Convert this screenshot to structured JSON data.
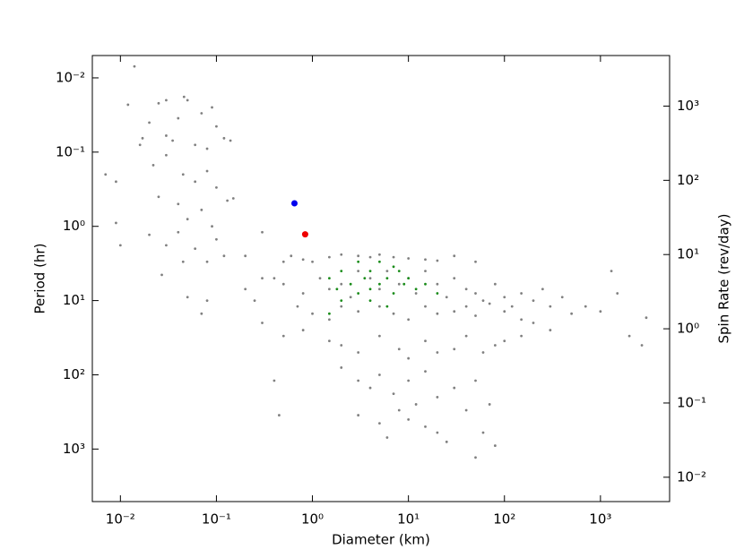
{
  "chart_data": {
    "type": "scatter",
    "x_label": "Diameter (km)",
    "y_label": "Period (hr)",
    "y2_label": "Spin Rate (rev/day)",
    "x_log": true,
    "y_log": true,
    "y2_log": true,
    "y_inverted": true,
    "xlim": [
      0.0051,
      5250
    ],
    "ylim": [
      0.005,
      5100
    ],
    "y2lim": [
      0.0047,
      4800
    ],
    "xticks": [
      {
        "value": 0.01,
        "label": "10⁻²"
      },
      {
        "value": 0.1,
        "label": "10⁻¹"
      },
      {
        "value": 1,
        "label": "10⁰"
      },
      {
        "value": 10,
        "label": "10¹"
      },
      {
        "value": 100,
        "label": "10²"
      },
      {
        "value": 1000,
        "label": "10³"
      }
    ],
    "yticks": [
      {
        "value": 0.01,
        "label": "10⁻²"
      },
      {
        "value": 0.1,
        "label": "10⁻¹"
      },
      {
        "value": 1,
        "label": "10⁰"
      },
      {
        "value": 10,
        "label": "10¹"
      },
      {
        "value": 100,
        "label": "10²"
      },
      {
        "value": 1000,
        "label": "10³"
      }
    ],
    "y2ticks": [
      {
        "value": 0.01,
        "label": "10⁻²"
      },
      {
        "value": 0.1,
        "label": "10⁻¹"
      },
      {
        "value": 1,
        "label": "10⁰"
      },
      {
        "value": 10,
        "label": "10¹"
      },
      {
        "value": 100,
        "label": "10²"
      },
      {
        "value": 1000,
        "label": "10³"
      }
    ],
    "series": [
      {
        "color": "#808080",
        "size": 1.4,
        "x": [
          0.014,
          0.012,
          0.025,
          0.03,
          0.046,
          0.05,
          0.04,
          0.07,
          0.09,
          0.1,
          0.017,
          0.02,
          0.03,
          0.035,
          0.06,
          0.08,
          0.12,
          0.14,
          0.016,
          0.007,
          0.009,
          0.022,
          0.03,
          0.045,
          0.06,
          0.08,
          0.1,
          0.13,
          0.15,
          0.025,
          0.04,
          0.05,
          0.07,
          0.09,
          0.1,
          0.04,
          0.03,
          0.06,
          0.009,
          0.01,
          0.02,
          0.08,
          0.12,
          0.05,
          0.08,
          0.027,
          0.045,
          0.2,
          0.3,
          0.07,
          0.2,
          0.25,
          0.3,
          0.4,
          0.3,
          0.5,
          0.6,
          0.8,
          1,
          1.5,
          2,
          3,
          4,
          5,
          7,
          10,
          15,
          20,
          30,
          50,
          0.5,
          0.8,
          1.2,
          1.5,
          2,
          2.5,
          3,
          4,
          5,
          6,
          8,
          10,
          12,
          15,
          20,
          25,
          30,
          40,
          50,
          60,
          80,
          100,
          120,
          150,
          200,
          250,
          300,
          400,
          500,
          700,
          1000,
          1300,
          1500,
          2000,
          2700,
          3000,
          0.7,
          1,
          1.5,
          2,
          3,
          5,
          7,
          10,
          15,
          20,
          30,
          40,
          50,
          70,
          100,
          150,
          200,
          300,
          0.5,
          0.8,
          1.5,
          2,
          3,
          5,
          8,
          10,
          15,
          20,
          30,
          40,
          60,
          80,
          100,
          150,
          2,
          3,
          4,
          5,
          7,
          10,
          12,
          15,
          20,
          30,
          40,
          50,
          70,
          8,
          10,
          5,
          3,
          6,
          15,
          20,
          25,
          50,
          60,
          80,
          0.4,
          0.45
        ],
        "values": [
          0.007,
          0.023,
          0.022,
          0.02,
          0.018,
          0.02,
          0.035,
          0.03,
          0.025,
          0.045,
          0.065,
          0.04,
          0.06,
          0.07,
          0.08,
          0.09,
          0.065,
          0.07,
          0.08,
          0.2,
          0.25,
          0.15,
          0.11,
          0.2,
          0.25,
          0.18,
          0.3,
          0.45,
          0.42,
          0.4,
          0.5,
          0.8,
          0.6,
          1.0,
          1.5,
          1.2,
          1.8,
          2.0,
          0.9,
          1.8,
          1.3,
          3.0,
          2.5,
          9,
          10,
          4.5,
          3,
          2.5,
          1.2,
          15,
          7,
          10,
          20,
          5,
          5,
          3,
          2.5,
          2.8,
          3,
          2.6,
          2.4,
          2.5,
          2.6,
          2.4,
          2.6,
          2.7,
          2.8,
          2.9,
          2.5,
          3,
          6,
          8,
          5,
          7,
          6,
          9,
          4,
          5,
          7,
          4,
          6,
          5,
          8,
          4,
          6,
          9,
          5,
          7,
          8,
          10,
          6,
          9,
          12,
          8,
          10,
          7,
          12,
          9,
          15,
          12,
          14,
          4,
          8,
          30,
          40,
          17,
          12,
          15,
          18,
          12,
          14,
          12,
          15,
          18,
          12,
          15,
          14,
          12,
          16,
          11,
          14,
          18,
          20,
          25,
          30,
          25,
          35,
          40,
          50,
          30,
          45,
          60,
          35,
          50,
          45,
          30,
          50,
          40,
          35,
          30,
          80,
          120,
          150,
          100,
          180,
          120,
          250,
          90,
          200,
          150,
          300,
          120,
          250,
          300,
          400,
          450,
          350,
          700,
          500,
          600,
          800,
          1300,
          600,
          900,
          120,
          350
        ]
      },
      {
        "color": "#1a8c1a",
        "size": 1.4,
        "x": [
          1.5,
          2,
          2.5,
          3,
          3,
          4,
          4,
          5,
          5,
          6,
          7,
          7,
          8,
          9,
          10,
          12,
          15,
          2,
          1.8,
          3.5,
          6,
          20,
          1.5,
          4
        ],
        "values": [
          5,
          4,
          6,
          3,
          8,
          4,
          10,
          3,
          6,
          5,
          3.5,
          8,
          4,
          6,
          5,
          7,
          6,
          10,
          7,
          5,
          12,
          8,
          15,
          7
        ]
      },
      {
        "color": "#0000ee",
        "size": 3.5,
        "x": [
          0.65
        ],
        "values": [
          0.49
        ]
      },
      {
        "color": "#ee0000",
        "size": 3.5,
        "x": [
          0.84
        ],
        "values": [
          1.28
        ]
      }
    ]
  }
}
